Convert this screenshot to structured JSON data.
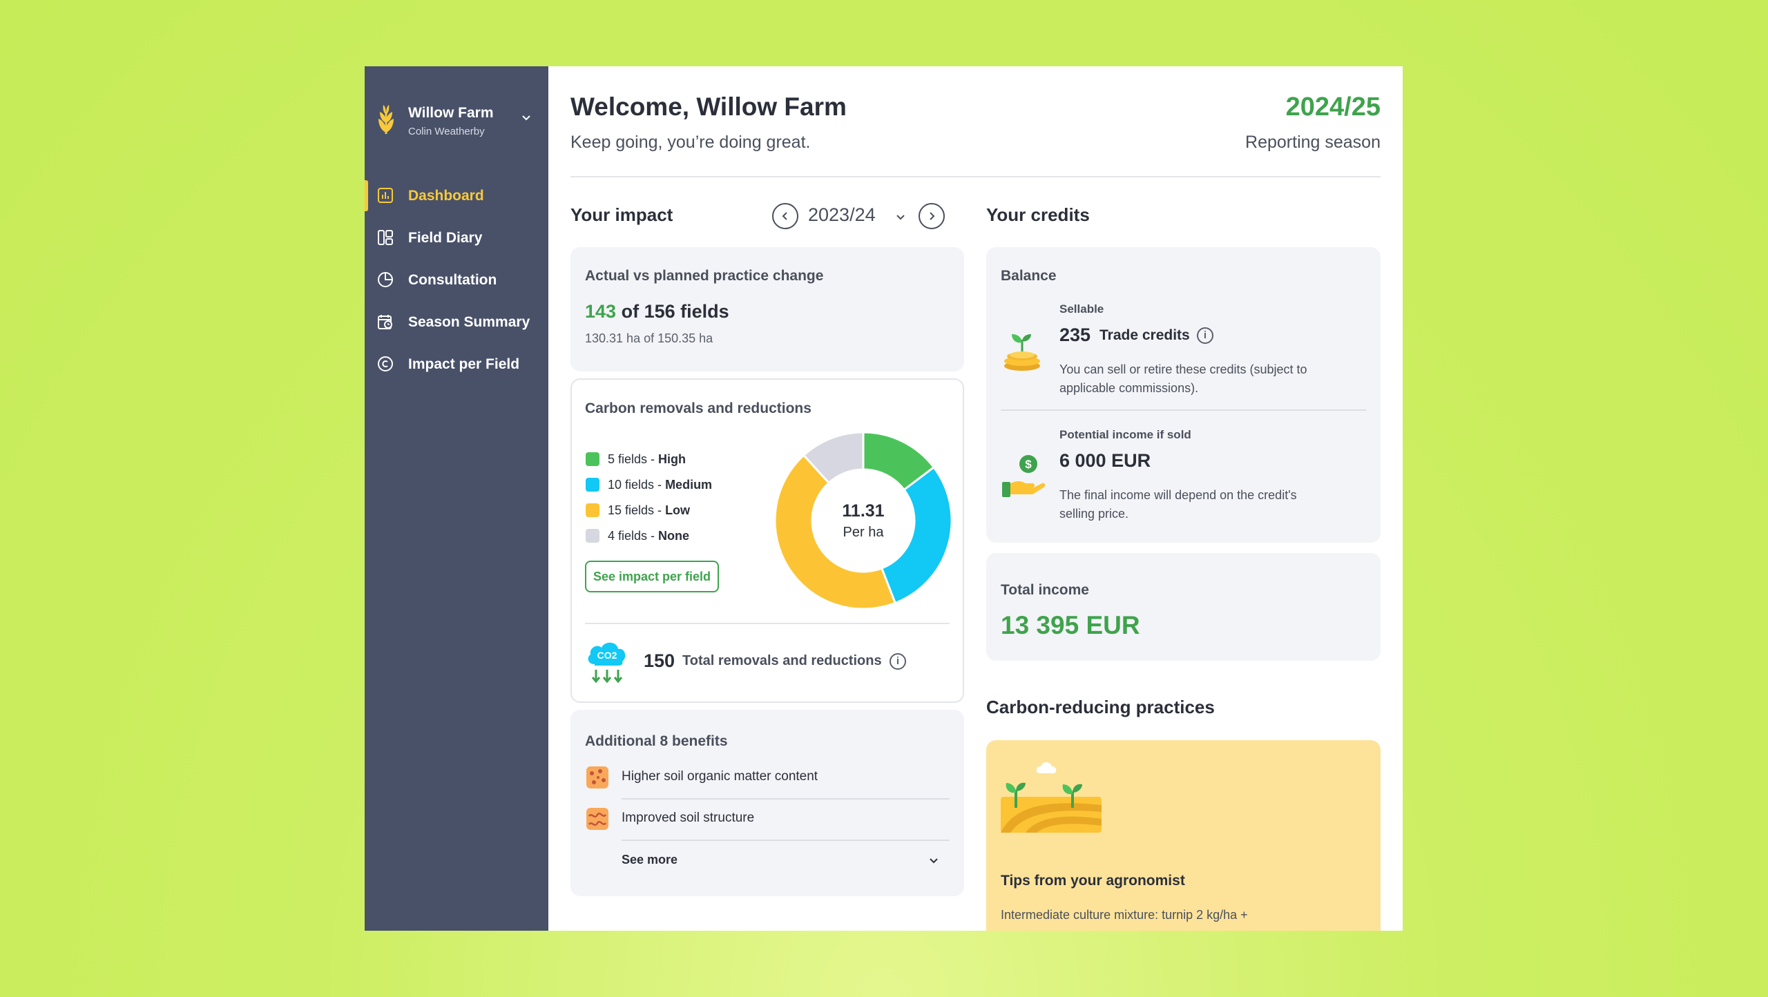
{
  "sidebar": {
    "farm_name": "Willow Farm",
    "user_name": "Colin Weatherby",
    "items": [
      {
        "label": "Dashboard",
        "icon": "bar-chart-icon",
        "active": true
      },
      {
        "label": "Field Diary",
        "icon": "diary-icon",
        "active": false
      },
      {
        "label": "Consultation",
        "icon": "pie-chart-icon",
        "active": false
      },
      {
        "label": "Season Summary",
        "icon": "calendar-clock-icon",
        "active": false
      },
      {
        "label": "Impact per Field",
        "icon": "copyright-circle-icon",
        "active": false
      }
    ]
  },
  "header": {
    "title": "Welcome, Willow Farm",
    "subtitle": "Keep going, you’re doing great.",
    "season": "2024/25",
    "season_label": "Reporting season"
  },
  "impact": {
    "title": "Your impact",
    "year": "2023/24",
    "practice_card": {
      "label": "Actual vs planned practice change",
      "actual": "143",
      "of_text": "of 156 fields",
      "area": "130.31 ha of 150.35 ha"
    },
    "carbon_card": {
      "label": "Carbon removals and reductions",
      "legend": [
        {
          "count": "5 fields - ",
          "level": "High",
          "color": "#4cc35a"
        },
        {
          "count": "10 fields - ",
          "level": "Medium",
          "color": "#12c8f5"
        },
        {
          "count": "15 fields - ",
          "level": "Low",
          "color": "#fcc434"
        },
        {
          "count": "4 fields - ",
          "level": "None",
          "color": "#d6d7e0"
        }
      ],
      "donut_fields": [
        5,
        10,
        15,
        4
      ],
      "center_value": "11.31",
      "center_unit": "Per ha",
      "button": "See impact per field",
      "total_value": "150",
      "total_label": "Total removals and reductions",
      "co2_text": "CO2"
    },
    "benefits_card": {
      "label": "Additional 8 benefits",
      "items": [
        "Higher soil organic matter content",
        "Improved soil structure"
      ],
      "see_more": "See more"
    }
  },
  "credits": {
    "title": "Your credits",
    "balance_label": "Balance",
    "sellable_label": "Sellable",
    "trade_value": "235",
    "trade_label": "Trade credits",
    "trade_desc_1": "You can sell or retire these credits (subject to",
    "trade_desc_2": "applicable commissions).",
    "potential_label": "Potential income if sold",
    "potential_value": "6 000 EUR",
    "potential_desc_1": "The final income will depend on the credit's",
    "potential_desc_2": "selling price.",
    "total_label": "Total income",
    "total_value": "13 395 EUR"
  },
  "practices": {
    "title": "Carbon-reducing practices",
    "tips_title": "Tips from your agronomist",
    "tips_text": "Intermediate culture mixture: turnip 2 kg/ha +"
  },
  "colors": {
    "accent_green": "#3fa34d",
    "sidebar_bg": "#495169",
    "active_yellow": "#f8c93a",
    "tips_bg": "#fde39a"
  }
}
